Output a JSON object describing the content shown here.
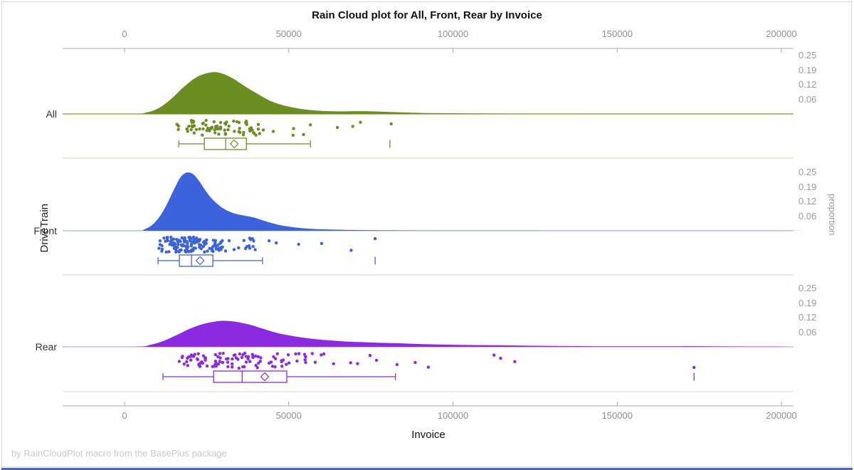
{
  "ui": {
    "footer": "by RainCloudPlot macro from the BasePlus package",
    "frame_color": "#D9D9D9",
    "accent_bar_color": "#4766D6"
  },
  "chart_data": {
    "type": "raincloud",
    "title": "Rain Cloud plot for All, Front, Rear by Invoice",
    "xlabel": "Invoice",
    "ylabel": "DriveTrain",
    "ylabel_right": "proportion",
    "categories": [
      "All",
      "Front",
      "Rear"
    ],
    "x_ticks": [
      0,
      50000,
      100000,
      150000,
      200000
    ],
    "xlim": [
      -19000,
      204000
    ],
    "proportion_tick_labels": [
      "0.25",
      "0.19",
      "0.12",
      "0.06"
    ],
    "proportion_tick_values": [
      0.25,
      0.1875,
      0.125,
      0.0625
    ],
    "axis_color": "#A9A9A9",
    "tick_label_color": "#8F8F8F",
    "legend": "none",
    "grid": "off",
    "groups": [
      {
        "name": "All",
        "fill": "#6B8E23",
        "line": "#7FA02C",
        "separator": "#DAE2C1",
        "box": {
          "whisker_low": 16500,
          "q1": 24300,
          "median": 30800,
          "mean": 33400,
          "q3": 37100,
          "whisker_high": 56600,
          "far_outlier": 80800
        },
        "density": [
          [
            2000,
            0
          ],
          [
            6000,
            0.004
          ],
          [
            10000,
            0.022
          ],
          [
            14000,
            0.062
          ],
          [
            18000,
            0.115
          ],
          [
            22000,
            0.158
          ],
          [
            26000,
            0.177
          ],
          [
            29000,
            0.176
          ],
          [
            33000,
            0.152
          ],
          [
            37000,
            0.115
          ],
          [
            41000,
            0.082
          ],
          [
            45000,
            0.052
          ],
          [
            50000,
            0.031
          ],
          [
            55000,
            0.019
          ],
          [
            60000,
            0.013
          ],
          [
            66000,
            0.011
          ],
          [
            72000,
            0.012
          ],
          [
            78000,
            0.01
          ],
          [
            84000,
            0.007
          ],
          [
            92000,
            0.004
          ],
          [
            105000,
            0.0025
          ],
          [
            130000,
            0.0012
          ],
          [
            160000,
            0.0008
          ],
          [
            199000,
            0.0005
          ]
        ],
        "rain": {
          "count": 82,
          "log_mean": 10.3,
          "log_sd": 0.27,
          "min": 15000,
          "max": 52500,
          "outliers": [
            54500,
            56600,
            64800,
            69500,
            71800,
            81200
          ],
          "seed": 11
        }
      },
      {
        "name": "Front",
        "fill": "#3C63DB",
        "line": "#A3B7EF",
        "separator": "#CBD6F7",
        "box": {
          "whisker_low": 10200,
          "q1": 16700,
          "median": 20400,
          "mean": 23000,
          "q3": 26900,
          "whisker_high": 42000,
          "far_outlier": 76300
        },
        "density": [
          [
            3000,
            0
          ],
          [
            6000,
            0.006
          ],
          [
            9000,
            0.032
          ],
          [
            12000,
            0.09
          ],
          [
            15000,
            0.175
          ],
          [
            17000,
            0.228
          ],
          [
            19000,
            0.249
          ],
          [
            21000,
            0.241
          ],
          [
            23000,
            0.207
          ],
          [
            25000,
            0.165
          ],
          [
            27000,
            0.131
          ],
          [
            30000,
            0.096
          ],
          [
            33000,
            0.076
          ],
          [
            36000,
            0.066
          ],
          [
            39000,
            0.058
          ],
          [
            42000,
            0.045
          ],
          [
            45000,
            0.032
          ],
          [
            48000,
            0.022
          ],
          [
            52000,
            0.014
          ],
          [
            57000,
            0.008
          ],
          [
            63000,
            0.005
          ],
          [
            70000,
            0.003
          ],
          [
            80000,
            0.0018
          ],
          [
            95000,
            0.0009
          ],
          [
            120000,
            0.0005
          ],
          [
            199000,
            0.0002
          ]
        ],
        "rain": {
          "count": 158,
          "log_mean": 9.93,
          "log_sd": 0.3,
          "min": 9800,
          "max": 42500,
          "outliers": [
            44000,
            46200,
            53000,
            60000,
            69000,
            76300
          ],
          "seed": 23
        }
      },
      {
        "name": "Rear",
        "fill": "#8A2BE2",
        "line": "#C4A5EC",
        "separator": "#E4D5F8",
        "box": {
          "whisker_low": 11700,
          "q1": 27100,
          "median": 35800,
          "mean": 42700,
          "q3": 49400,
          "whisker_high": 82500,
          "far_outlier": 173400
        },
        "density": [
          [
            3000,
            0
          ],
          [
            8000,
            0.009
          ],
          [
            12000,
            0.026
          ],
          [
            16000,
            0.051
          ],
          [
            20000,
            0.078
          ],
          [
            24000,
            0.098
          ],
          [
            28000,
            0.109
          ],
          [
            31000,
            0.111
          ],
          [
            34000,
            0.107
          ],
          [
            38000,
            0.095
          ],
          [
            42000,
            0.078
          ],
          [
            46000,
            0.061
          ],
          [
            50000,
            0.049
          ],
          [
            54000,
            0.04
          ],
          [
            58000,
            0.033
          ],
          [
            62000,
            0.028
          ],
          [
            67000,
            0.023
          ],
          [
            72000,
            0.02
          ],
          [
            78000,
            0.017
          ],
          [
            84000,
            0.015
          ],
          [
            90000,
            0.012
          ],
          [
            97000,
            0.0095
          ],
          [
            105000,
            0.0075
          ],
          [
            113000,
            0.0068
          ],
          [
            120000,
            0.0052
          ],
          [
            130000,
            0.0037
          ],
          [
            140000,
            0.0027
          ],
          [
            152000,
            0.0022
          ],
          [
            165000,
            0.0024
          ],
          [
            175000,
            0.0026
          ],
          [
            185000,
            0.0016
          ],
          [
            199000,
            0.0009
          ]
        ],
        "rain": {
          "count": 108,
          "log_mean": 10.42,
          "log_sd": 0.4,
          "min": 12000,
          "max": 86000,
          "outliers": [
            88500,
            92500,
            112500,
            114500,
            118800,
            173400
          ],
          "seed": 37
        }
      }
    ]
  }
}
